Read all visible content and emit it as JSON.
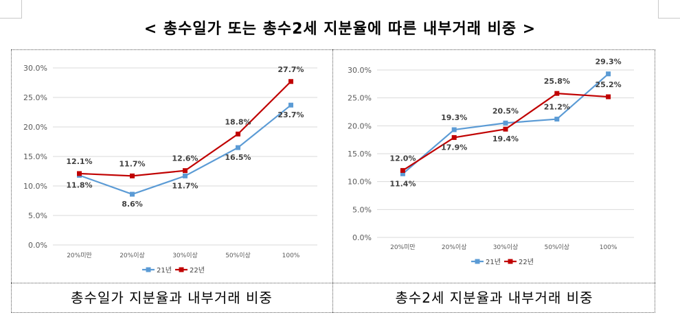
{
  "title": "< 총수일가 또는 총수2세 지분율에 따른 내부거래 비중 >",
  "captions": {
    "left": "총수일가 지분율과 내부거래 비중",
    "right": "총수2세 지분율과 내부거래 비중"
  },
  "chart_data": [
    {
      "type": "line",
      "categories": [
        "20%미만",
        "20%이상",
        "30%이상",
        "50%이상",
        "100%"
      ],
      "ylim": [
        0,
        30
      ],
      "yticks": [
        "0.0%",
        "5.0%",
        "10.0%",
        "15.0%",
        "20.0%",
        "25.0%",
        "30.0%"
      ],
      "grid": true,
      "legend": "bottom",
      "series": [
        {
          "name": "21년",
          "color": "#5b9bd5",
          "marker": "square",
          "values": [
            11.8,
            8.6,
            11.7,
            16.5,
            23.7
          ],
          "labels": [
            "11.8%",
            "8.6%",
            "11.7%",
            "16.5%",
            "23.7%"
          ]
        },
        {
          "name": "22년",
          "color": "#c00000",
          "marker": "square",
          "values": [
            12.1,
            11.7,
            12.6,
            18.8,
            27.7
          ],
          "labels": [
            "12.1%",
            "11.7%",
            "12.6%",
            "18.8%",
            "27.7%"
          ]
        }
      ]
    },
    {
      "type": "line",
      "categories": [
        "20%미만",
        "20%이상",
        "30%이상",
        "50%이상",
        "100%"
      ],
      "ylim": [
        0,
        30
      ],
      "yticks": [
        "0.0%",
        "5.0%",
        "10.0%",
        "15.0%",
        "20.0%",
        "25.0%",
        "30.0%"
      ],
      "grid": true,
      "legend": "bottom",
      "series": [
        {
          "name": "21년",
          "color": "#5b9bd5",
          "marker": "square",
          "values": [
            11.4,
            19.3,
            20.5,
            21.2,
            29.3
          ],
          "labels": [
            "11.4%",
            "19.3%",
            "20.5%",
            "21.2%",
            "29.3%"
          ]
        },
        {
          "name": "22년",
          "color": "#c00000",
          "marker": "square",
          "values": [
            12.0,
            17.9,
            19.4,
            25.8,
            25.2
          ],
          "labels": [
            "12.0%",
            "17.9%",
            "19.4%",
            "25.8%",
            "25.2%"
          ]
        }
      ]
    }
  ]
}
